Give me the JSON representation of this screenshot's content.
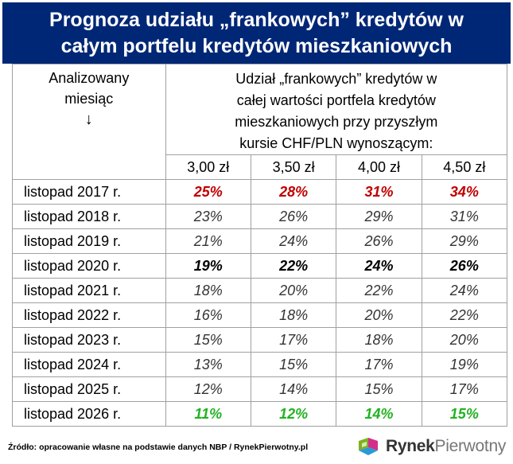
{
  "title_line1": "Prognoza udziału „frankowych” kredytów w",
  "title_line2": "całym portfelu kredytów mieszkaniowych",
  "col_header_line1": "Analizowany",
  "col_header_line2": "miesiąc",
  "col_header_arrow": "↓",
  "group_header_lines": [
    "Udział „frankowych” kredytów w",
    "całej wartości portfela kredytów",
    "mieszkaniowych przy przyszłym",
    "kursie CHF/PLN wynoszącym:"
  ],
  "source": "Źródło: opracowanie własne na podstawie danych NBP / RynekPierwotny.pl",
  "logo": {
    "part1": "Rynek",
    "part2": "Pierwotny"
  },
  "colors": {
    "header_bg": "#002776",
    "red": "#c00000",
    "green": "#22b222"
  },
  "chart_data": {
    "type": "table",
    "columns": [
      "3,00 zł",
      "3,50 zł",
      "4,00 zł",
      "4,50 zł"
    ],
    "rows": [
      {
        "month": "listopad 2017 r.",
        "values": [
          "25%",
          "28%",
          "31%",
          "34%"
        ],
        "style": "red"
      },
      {
        "month": "listopad 2018 r.",
        "values": [
          "23%",
          "26%",
          "29%",
          "31%"
        ],
        "style": "normal"
      },
      {
        "month": "listopad 2019 r.",
        "values": [
          "21%",
          "24%",
          "26%",
          "29%"
        ],
        "style": "normal"
      },
      {
        "month": "listopad 2020 r.",
        "values": [
          "19%",
          "22%",
          "24%",
          "26%"
        ],
        "style": "bold"
      },
      {
        "month": "listopad 2021 r.",
        "values": [
          "18%",
          "20%",
          "22%",
          "24%"
        ],
        "style": "normal"
      },
      {
        "month": "listopad 2022 r.",
        "values": [
          "16%",
          "18%",
          "20%",
          "22%"
        ],
        "style": "normal"
      },
      {
        "month": "listopad 2023 r.",
        "values": [
          "15%",
          "17%",
          "18%",
          "20%"
        ],
        "style": "normal"
      },
      {
        "month": "listopad 2024 r.",
        "values": [
          "13%",
          "15%",
          "17%",
          "19%"
        ],
        "style": "normal"
      },
      {
        "month": "listopad 2025 r.",
        "values": [
          "12%",
          "14%",
          "15%",
          "17%"
        ],
        "style": "normal"
      },
      {
        "month": "listopad 2026 r.",
        "values": [
          "11%",
          "12%",
          "14%",
          "15%"
        ],
        "style": "green"
      }
    ]
  }
}
